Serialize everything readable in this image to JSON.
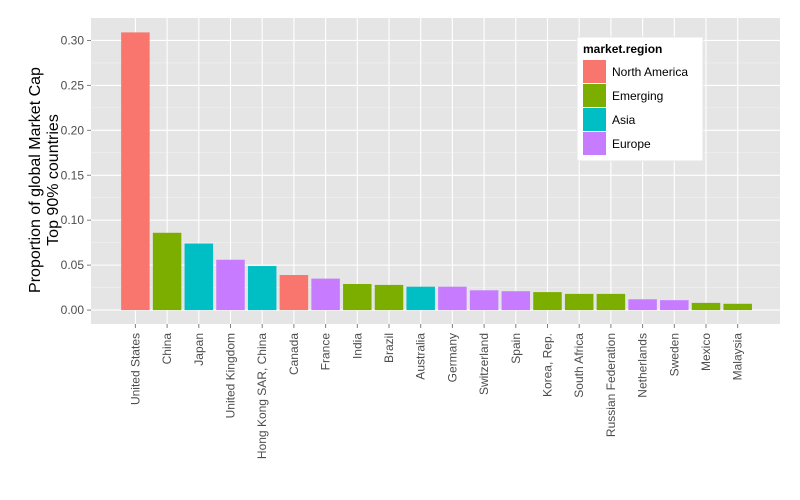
{
  "chart_data": {
    "type": "bar",
    "categories": [
      "United States",
      "China",
      "Japan",
      "United Kingdom",
      "Hong Kong SAR, China",
      "Canada",
      "France",
      "India",
      "Brazil",
      "Australia",
      "Germany",
      "Switzerland",
      "Spain",
      "Korea, Rep.",
      "South Africa",
      "Russian Federation",
      "Netherlands",
      "Sweden",
      "Mexico",
      "Malaysia"
    ],
    "values": [
      0.309,
      0.086,
      0.074,
      0.056,
      0.049,
      0.039,
      0.035,
      0.029,
      0.028,
      0.026,
      0.026,
      0.022,
      0.021,
      0.02,
      0.018,
      0.018,
      0.012,
      0.011,
      0.008,
      0.007
    ],
    "groups": [
      "North America",
      "Emerging",
      "Asia",
      "Europe",
      "Asia",
      "North America",
      "Europe",
      "Emerging",
      "Emerging",
      "Asia",
      "Europe",
      "Europe",
      "Europe",
      "Emerging",
      "Emerging",
      "Emerging",
      "Europe",
      "Europe",
      "Emerging",
      "Emerging"
    ],
    "ylabel_lines": [
      "Proportion of global Market Cap",
      "Top 90% countries"
    ],
    "xlabel": "",
    "ylim": [
      -0.0155,
      0.325
    ],
    "yticks": [
      0.0,
      0.05,
      0.1,
      0.15,
      0.2,
      0.25,
      0.3
    ],
    "ytick_labels": [
      "0.00",
      "0.05",
      "0.10",
      "0.15",
      "0.20",
      "0.25",
      "0.30"
    ],
    "grid": true,
    "legend": {
      "title": "market.region",
      "placement": "top-right inside",
      "entries": [
        {
          "name": "North America",
          "color": "#F8766D"
        },
        {
          "name": "Emerging",
          "color": "#7CAE00"
        },
        {
          "name": "Asia",
          "color": "#00BFC4"
        },
        {
          "name": "Europe",
          "color": "#C77CFF"
        }
      ]
    },
    "colors": {
      "panel_background": "#E5E5E5",
      "grid_major": "#FFFFFF",
      "grid_minor": "#F2F2F2"
    }
  }
}
